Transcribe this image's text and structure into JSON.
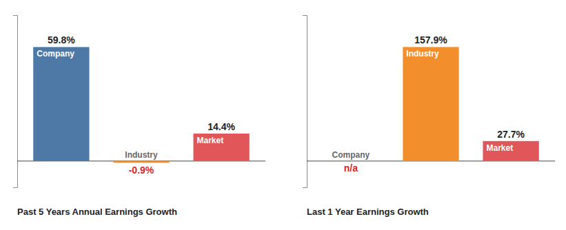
{
  "chart_data": [
    {
      "type": "bar",
      "title": "Past 5 Years Annual Earnings Growth",
      "categories": [
        "Company",
        "Industry",
        "Market"
      ],
      "values": [
        59.8,
        -0.9,
        14.4
      ],
      "value_labels": [
        "59.8%",
        "-0.9%",
        "14.4%"
      ],
      "data_labels": true,
      "ylim": [
        -13.77792,
        76.544
      ],
      "tick_labels": false
    },
    {
      "type": "bar",
      "title": "Last 1 Year Earnings Growth",
      "categories": [
        "Company",
        "Industry",
        "Market"
      ],
      "values": [
        null,
        157.9,
        27.7
      ],
      "value_labels": [
        "n/a",
        "157.9%",
        "27.7%"
      ],
      "data_labels": true,
      "ylim": [
        -36.38016,
        202.112
      ],
      "tick_labels": false
    }
  ]
}
